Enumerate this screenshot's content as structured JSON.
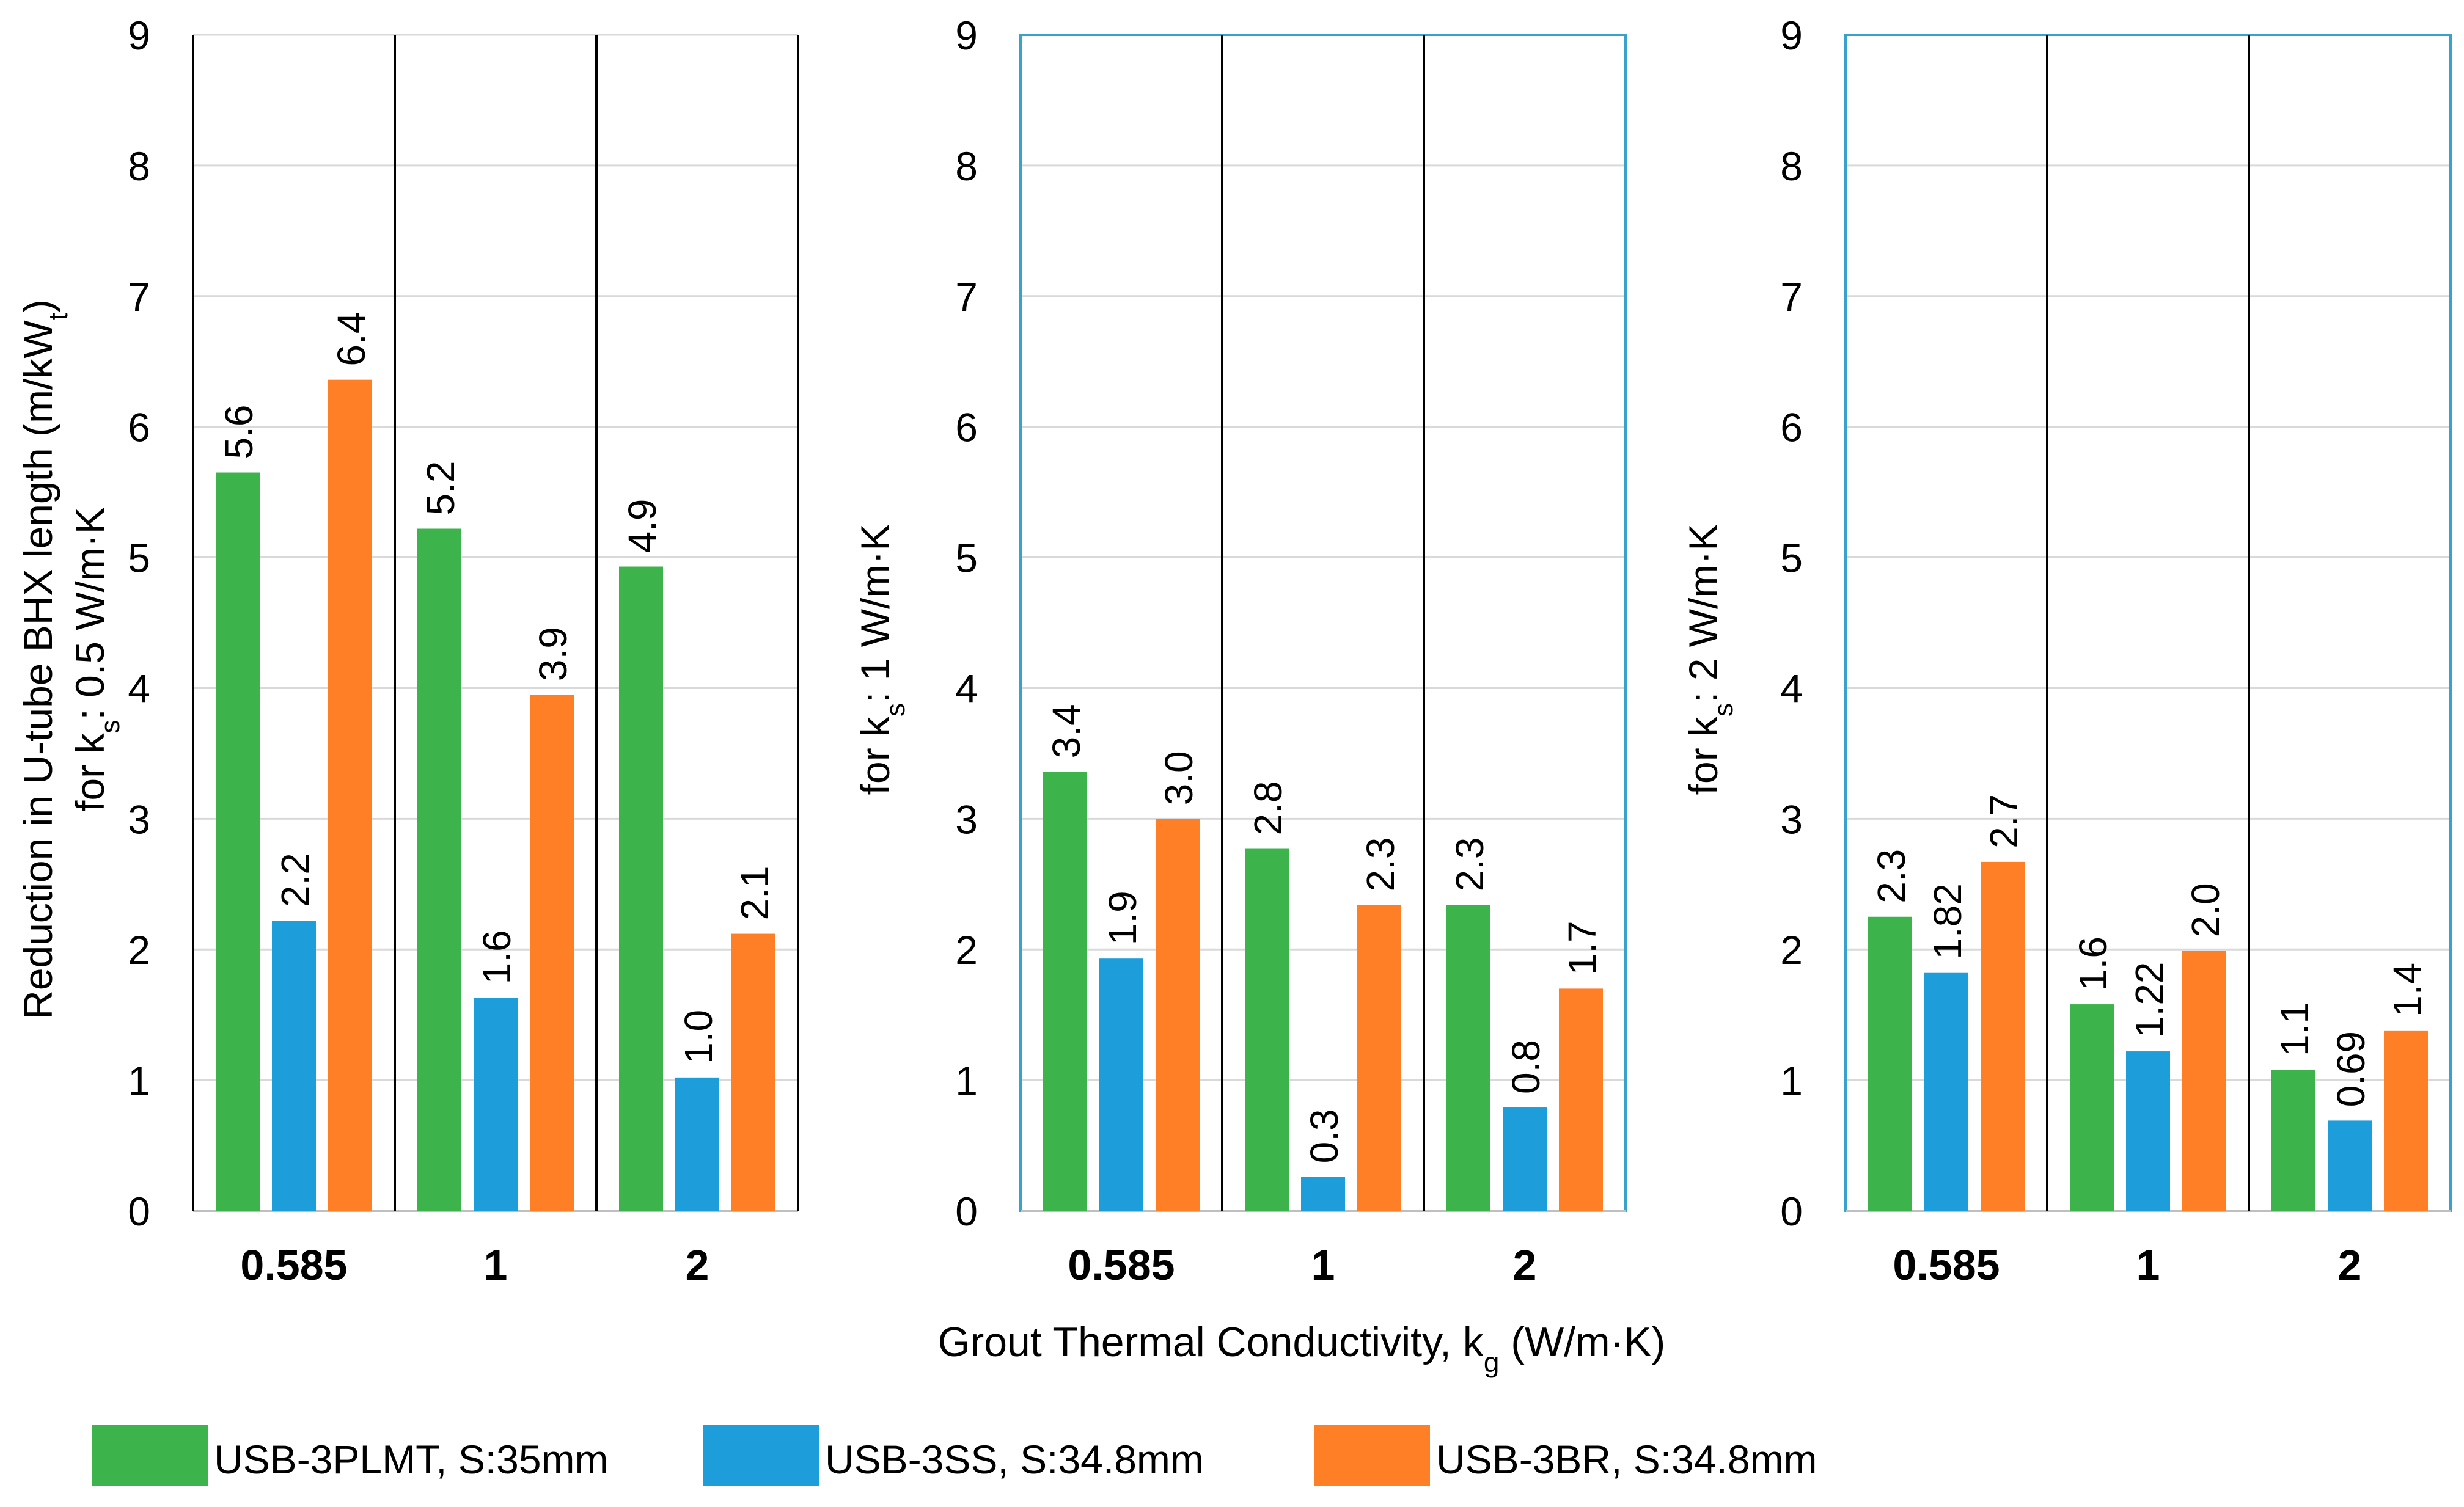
{
  "x_axis_title_main": "Grout Thermal Conductivity, k",
  "x_axis_title_sub": "g",
  "x_axis_title_tail": " (W/m·K)",
  "legend": [
    {
      "label": "USB-3PLMT, S:35mm",
      "color": "#3cb44b"
    },
    {
      "label": "USB-3SS, S:34.8mm",
      "color": "#1e9ddb"
    },
    {
      "label": "USB-3BR, S:34.8mm",
      "color": "#ff7f27"
    }
  ],
  "chart_data": [
    {
      "type": "bar",
      "categories": [
        "0.585",
        "1",
        "2"
      ],
      "ylim": [
        0,
        9
      ],
      "yticks": [
        "0",
        "1",
        "2",
        "3",
        "4",
        "5",
        "6",
        "7",
        "8",
        "9"
      ],
      "grid": true,
      "ylabel_lines": [
        {
          "pre": "Reduction in U-tube BHX length (m/kW",
          "sub": "t",
          "post": ")"
        },
        {
          "pre": "for k",
          "sub": "s",
          "post": ": 0.5 W/m·K"
        }
      ],
      "series": [
        {
          "name": "USB-3PLMT, S:35mm",
          "values": [
            5.65,
            5.22,
            4.93
          ],
          "labels": [
            "5.6",
            "5.2",
            "4.9"
          ]
        },
        {
          "name": "USB-3SS, S:34.8mm",
          "values": [
            2.22,
            1.63,
            1.02
          ],
          "labels": [
            "2.2",
            "1.6",
            "1.0"
          ]
        },
        {
          "name": "USB-3BR, S:34.8mm",
          "values": [
            6.36,
            3.95,
            2.12
          ],
          "labels": [
            "6.4",
            "3.9",
            "2.1"
          ]
        }
      ]
    },
    {
      "type": "bar",
      "categories": [
        "0.585",
        "1",
        "2"
      ],
      "ylim": [
        0,
        9
      ],
      "yticks": [
        "0",
        "1",
        "2",
        "3",
        "4",
        "5",
        "6",
        "7",
        "8",
        "9"
      ],
      "grid": true,
      "ylabel_lines": [
        {
          "pre": "for k",
          "sub": "s",
          "post": ": 1 W/m·K"
        }
      ],
      "series": [
        {
          "name": "USB-3PLMT, S:35mm",
          "values": [
            3.36,
            2.77,
            2.34
          ],
          "labels": [
            "3.4",
            "2.8",
            "2.3"
          ]
        },
        {
          "name": "USB-3SS, S:34.8mm",
          "values": [
            1.93,
            0.26,
            0.79
          ],
          "labels": [
            "1.9",
            "0.3",
            "0.8"
          ]
        },
        {
          "name": "USB-3BR, S:34.8mm",
          "values": [
            3.0,
            2.34,
            1.7
          ],
          "labels": [
            "3.0",
            "2.3",
            "1.7"
          ]
        }
      ]
    },
    {
      "type": "bar",
      "categories": [
        "0.585",
        "1",
        "2"
      ],
      "ylim": [
        0,
        9
      ],
      "yticks": [
        "0",
        "1",
        "2",
        "3",
        "4",
        "5",
        "6",
        "7",
        "8",
        "9"
      ],
      "grid": true,
      "ylabel_lines": [
        {
          "pre": "for k",
          "sub": "s",
          "post": ": 2 W/m·K"
        }
      ],
      "series": [
        {
          "name": "USB-3PLMT, S:35mm",
          "values": [
            2.25,
            1.58,
            1.08
          ],
          "labels": [
            "2.3",
            "1.6",
            "1.1"
          ]
        },
        {
          "name": "USB-3SS, S:34.8mm",
          "values": [
            1.82,
            1.22,
            0.69
          ],
          "labels": [
            "1.82",
            "1.22",
            "0.69"
          ]
        },
        {
          "name": "USB-3BR, S:34.8mm",
          "values": [
            2.67,
            1.99,
            1.38
          ],
          "labels": [
            "2.7",
            "2.0",
            "1.4"
          ]
        }
      ]
    }
  ]
}
